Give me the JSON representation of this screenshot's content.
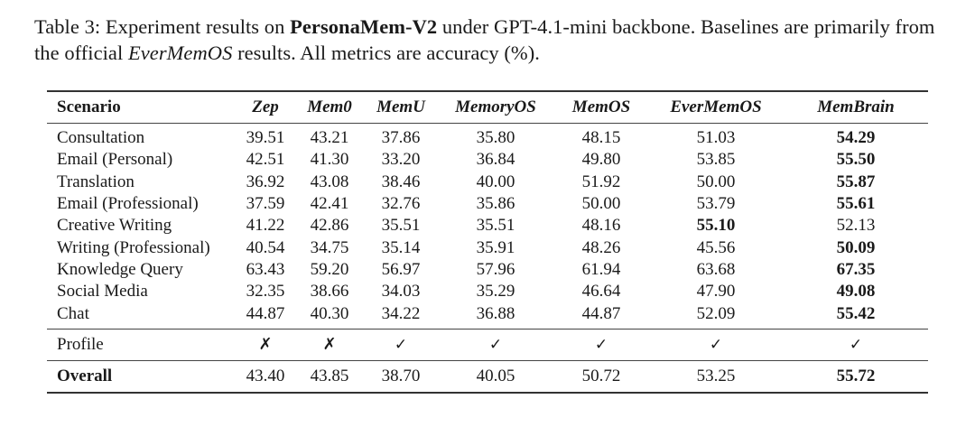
{
  "caption": {
    "label": "Table 3:",
    "text_1": "Experiment results on",
    "dataset_bold": "PersonaMem-V2",
    "text_2": "under GPT-4.1-mini backbone. Baselines are primarily from the official",
    "source_italic": "EverMemOS",
    "text_3": "results. All metrics are accuracy (%)."
  },
  "table": {
    "header": {
      "scenario": "Scenario",
      "models": [
        "Zep",
        "Mem0",
        "MemU",
        "MemoryOS",
        "MemOS",
        "EverMemOS",
        "MemBrain"
      ]
    },
    "rows": [
      {
        "scenario": "Consultation",
        "values": [
          "39.51",
          "43.21",
          "37.86",
          "35.80",
          "48.15",
          "51.03",
          "54.29"
        ],
        "best_index": 6
      },
      {
        "scenario": "Email (Personal)",
        "values": [
          "42.51",
          "41.30",
          "33.20",
          "36.84",
          "49.80",
          "53.85",
          "55.50"
        ],
        "best_index": 6
      },
      {
        "scenario": "Translation",
        "values": [
          "36.92",
          "43.08",
          "38.46",
          "40.00",
          "51.92",
          "50.00",
          "55.87"
        ],
        "best_index": 6
      },
      {
        "scenario": "Email (Professional)",
        "values": [
          "37.59",
          "42.41",
          "32.76",
          "35.86",
          "50.00",
          "53.79",
          "55.61"
        ],
        "best_index": 6
      },
      {
        "scenario": "Creative Writing",
        "values": [
          "41.22",
          "42.86",
          "35.51",
          "35.51",
          "48.16",
          "55.10",
          "52.13"
        ],
        "best_index": 5
      },
      {
        "scenario": "Writing (Professional)",
        "values": [
          "40.54",
          "34.75",
          "35.14",
          "35.91",
          "48.26",
          "45.56",
          "50.09"
        ],
        "best_index": 6
      },
      {
        "scenario": "Knowledge Query",
        "values": [
          "63.43",
          "59.20",
          "56.97",
          "57.96",
          "61.94",
          "63.68",
          "67.35"
        ],
        "best_index": 6
      },
      {
        "scenario": "Social Media",
        "values": [
          "32.35",
          "38.66",
          "34.03",
          "35.29",
          "46.64",
          "47.90",
          "49.08"
        ],
        "best_index": 6
      },
      {
        "scenario": "Chat",
        "values": [
          "44.87",
          "40.30",
          "34.22",
          "36.88",
          "44.87",
          "52.09",
          "55.42"
        ],
        "best_index": 6
      }
    ],
    "profile": {
      "label": "Profile",
      "marks": [
        "✗",
        "✗",
        "✓",
        "✓",
        "✓",
        "✓",
        "✓"
      ]
    },
    "overall": {
      "label": "Overall",
      "values": [
        "43.40",
        "43.85",
        "38.70",
        "40.05",
        "50.72",
        "53.25",
        "55.72"
      ],
      "best_index": 6
    }
  },
  "chart_data": {
    "type": "table",
    "title": "Table 3: Experiment results on PersonaMem-V2 under GPT-4.1-mini backbone. Baselines are primarily from the official EverMemOS results. All metrics are accuracy (%).",
    "columns": [
      "Scenario",
      "Zep",
      "Mem0",
      "MemU",
      "MemoryOS",
      "MemOS",
      "EverMemOS",
      "MemBrain"
    ],
    "categories": [
      "Consultation",
      "Email (Personal)",
      "Translation",
      "Email (Professional)",
      "Creative Writing",
      "Writing (Professional)",
      "Knowledge Query",
      "Social Media",
      "Chat",
      "Overall"
    ],
    "series": [
      {
        "name": "Zep",
        "values": [
          39.51,
          42.51,
          36.92,
          37.59,
          41.22,
          40.54,
          63.43,
          32.35,
          44.87,
          43.4
        ],
        "profile": false
      },
      {
        "name": "Mem0",
        "values": [
          43.21,
          41.3,
          43.08,
          42.41,
          42.86,
          34.75,
          59.2,
          38.66,
          40.3,
          43.85
        ],
        "profile": false
      },
      {
        "name": "MemU",
        "values": [
          37.86,
          33.2,
          38.46,
          32.76,
          35.51,
          35.14,
          56.97,
          34.03,
          34.22,
          38.7
        ],
        "profile": true
      },
      {
        "name": "MemoryOS",
        "values": [
          35.8,
          36.84,
          40.0,
          35.86,
          35.51,
          35.91,
          57.96,
          35.29,
          36.88,
          40.05
        ],
        "profile": true
      },
      {
        "name": "MemOS",
        "values": [
          48.15,
          49.8,
          51.92,
          50.0,
          48.16,
          48.26,
          61.94,
          46.64,
          44.87,
          50.72
        ],
        "profile": true
      },
      {
        "name": "EverMemOS",
        "values": [
          51.03,
          53.85,
          50.0,
          53.79,
          55.1,
          45.56,
          63.68,
          47.9,
          52.09,
          53.25
        ],
        "profile": true
      },
      {
        "name": "MemBrain",
        "values": [
          54.29,
          55.5,
          55.87,
          55.61,
          52.13,
          50.09,
          67.35,
          49.08,
          55.42,
          55.72
        ],
        "profile": true
      }
    ],
    "ylabel": "Accuracy (%)",
    "notes": "Best value per row shown in bold."
  }
}
